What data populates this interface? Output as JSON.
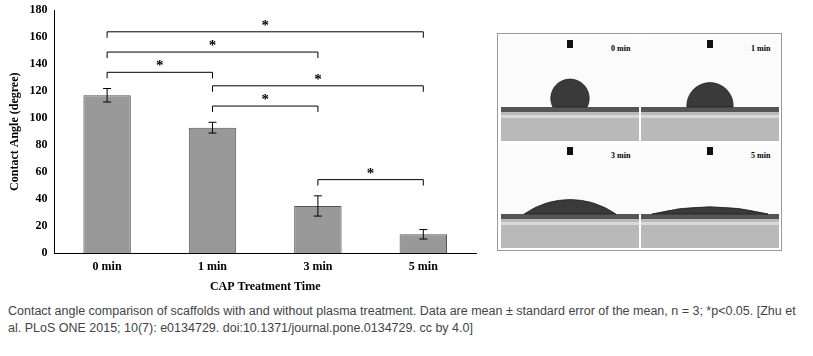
{
  "chart_data": {
    "type": "bar",
    "x_label": "CAP Treatment Time",
    "y_label": "Contact Angle (degree)",
    "categories": [
      "0 min",
      "1 min",
      "3 min",
      "5 min"
    ],
    "values": [
      117,
      93,
      35,
      14
    ],
    "errors": [
      5,
      4,
      7.5,
      3.5
    ],
    "color": "#999999",
    "ylim": [
      0,
      180
    ],
    "yticks": [
      0,
      20,
      40,
      60,
      80,
      100,
      120,
      140,
      160,
      180
    ],
    "grid": false,
    "significance": [
      {
        "from": "3 min",
        "to": "5 min",
        "label": "*"
      },
      {
        "from": "1 min",
        "to": "3 min",
        "label": "*"
      },
      {
        "from": "1 min",
        "to": "5 min",
        "label": "*"
      },
      {
        "from": "0 min",
        "to": "1 min",
        "label": "*"
      },
      {
        "from": "0 min",
        "to": "3 min",
        "label": "*"
      },
      {
        "from": "0 min",
        "to": "5 min",
        "label": "*"
      }
    ]
  },
  "photos": {
    "labels": [
      "0 min",
      "1 min",
      "3 min",
      "5 min"
    ]
  },
  "caption": "Contact angle comparison of scaffolds with and without plasma treatment. Data are mean ± standard error of the mean, n = 3; *p<0.05. [Zhu et al. PLoS ONE 2015; 10(7): e0134729. doi:10.1371/journal.pone.0134729. cc by 4.0]"
}
